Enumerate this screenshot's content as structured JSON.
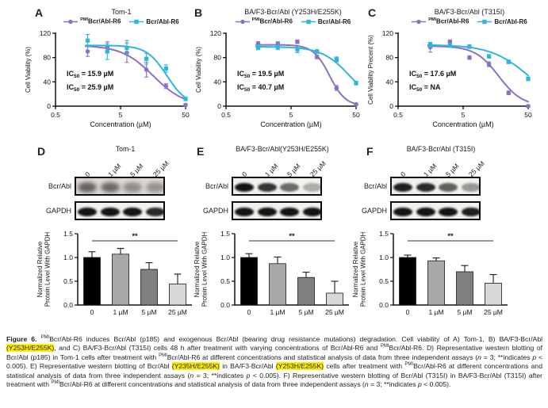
{
  "figure": {
    "highlight_color": "#ffec00",
    "caption_segments": [
      {
        "t": "Figure 6. ",
        "b": true
      },
      {
        "t": "PMI",
        "s": true
      },
      {
        "t": "Bcr/Abl-R6 induces Bcr/Abl (p185) and exogenous Bcr/Abl (bearing drug resistance mutations) degradation. Cell viability of A) Tom-1, B) BA/F3-Bcr/Abl "
      },
      {
        "t": "(Y253H/E255K)",
        "h": true
      },
      {
        "t": ", and C) BA/F3-Bcr/Abl (T315I) cells 48 h after treatment with varying concentrations of Bcr/Abl-R6 and "
      },
      {
        "t": "PMI",
        "s": true
      },
      {
        "t": "Bcr/Abl-R6. D) Representative western blotting of Bcr/Abl (p185) in Tom-1 cells after treatment with "
      },
      {
        "t": "PMI",
        "s": true
      },
      {
        "t": "Bcr/Abl-R6 at different concentrations and statistical analysis of data from three independent assays ("
      },
      {
        "t": "n",
        "i": true
      },
      {
        "t": " = 3; **indicates "
      },
      {
        "t": "p",
        "i": true
      },
      {
        "t": " < 0.005). E) Representative western blotting of Bcr/Abl "
      },
      {
        "t": "(Y235H/E255K)",
        "h": true
      },
      {
        "t": " in BA/F3-Bcr/Abl "
      },
      {
        "t": "(Y253H/E255K)",
        "h": true
      },
      {
        "t": " cells after treatment with "
      },
      {
        "t": "PMI",
        "s": true
      },
      {
        "t": "Bcr/Abl-R6 at different concentrations and statistical analysis of data from three independent assays ("
      },
      {
        "t": "n",
        "i": true
      },
      {
        "t": " = 3; **indicates "
      },
      {
        "t": "p",
        "i": true
      },
      {
        "t": " < 0.005). F) Representative western blotting of Bcr/Abl (T315I) in BA/F3-Bcr/Abl (T315I) after treatment with "
      },
      {
        "t": "PMI",
        "s": true
      },
      {
        "t": "Bcr/Abl-R6 at different concentrations and statistical analysis of data from three independent assays ("
      },
      {
        "t": "n",
        "i": true
      },
      {
        "t": " = 3; **indicates "
      },
      {
        "t": "p",
        "i": true
      },
      {
        "t": " < 0.005)."
      }
    ]
  },
  "colors": {
    "purple": "#8d6fc6",
    "cyan": "#2eb6dc",
    "bar_outline": "#1a1a1a"
  },
  "chart_data": [
    {
      "type": "line",
      "panel": "A",
      "title": "Tom-1",
      "xlabel": "Concentration (µM)",
      "ylabel": "Cell Viability (%)",
      "xrange": [
        0.5,
        50
      ],
      "yrange": [
        0,
        120
      ],
      "xticks": [
        0.5,
        5,
        50
      ],
      "xtick_labels": [
        "0.5",
        "5",
        "50"
      ],
      "yticks": [
        0,
        40,
        80,
        120
      ],
      "ytick_labels": [
        "0",
        "40",
        "80",
        "120"
      ],
      "series": [
        {
          "name_pmi": "PMI",
          "name": "Bcr/Abl-R6",
          "color": "#8d6fc6",
          "marker": "circle",
          "x": [
            1.56,
            3.13,
            6.25,
            12.5,
            25,
            50
          ],
          "y": [
            90,
            97,
            88,
            60,
            33,
            2
          ],
          "err": [
            8,
            9,
            16,
            12,
            4,
            2
          ],
          "fit": {
            "top": 100,
            "bottom": 0,
            "ic50": 15.9,
            "hill": 1.8
          }
        },
        {
          "name_pmi": "",
          "name": "Bcr/Abl-R6",
          "color": "#2eb6dc",
          "marker": "square",
          "x": [
            1.56,
            3.13,
            6.25,
            12.5,
            25,
            50
          ],
          "y": [
            108,
            90,
            96,
            78,
            62,
            12
          ],
          "err": [
            10,
            13,
            12,
            9,
            6,
            3
          ],
          "fit": {
            "top": 100,
            "bottom": 0,
            "ic50": 25.9,
            "hill": 2.8
          }
        }
      ],
      "annotations": [
        {
          "prefix": "IC",
          "sub": "50",
          "rest": " = 15.9 µM",
          "color": "#8d6fc6"
        },
        {
          "prefix": "IC",
          "sub": "50",
          "rest": " = 25.9 µM",
          "color": "#2eb6dc"
        }
      ]
    },
    {
      "type": "line",
      "panel": "B",
      "title": "BA/F3-Bcr/Abl (Y253H/E255K)",
      "xlabel": "Concentration (µM)",
      "ylabel": "Cell Viability (%)",
      "xrange": [
        0.5,
        50
      ],
      "yrange": [
        0,
        120
      ],
      "xticks": [
        0.5,
        5,
        50
      ],
      "xtick_labels": [
        "0.5",
        "5",
        "50"
      ],
      "yticks": [
        0,
        40,
        80,
        120
      ],
      "ytick_labels": [
        "0",
        "40",
        "80",
        "120"
      ],
      "series": [
        {
          "name_pmi": "PMI",
          "name": "Bcr/Abl-R6",
          "color": "#8d6fc6",
          "marker": "circle",
          "x": [
            1.56,
            3.13,
            6.25,
            12.5,
            25,
            50
          ],
          "y": [
            103,
            103,
            106,
            81,
            30,
            3
          ],
          "err": [
            3,
            3,
            3,
            3,
            4,
            2
          ],
          "fit": {
            "top": 101,
            "bottom": 0,
            "ic50": 19.5,
            "hill": 3.5
          }
        },
        {
          "name_pmi": "",
          "name": "Bcr/Abl-R6",
          "color": "#2eb6dc",
          "marker": "square",
          "x": [
            1.56,
            3.13,
            6.25,
            12.5,
            25,
            50
          ],
          "y": [
            97,
            97,
            93,
            90,
            77,
            38
          ],
          "err": [
            4,
            4,
            5,
            3,
            4,
            3
          ],
          "fit": {
            "top": 98,
            "bottom": 0,
            "ic50": 40.7,
            "hill": 2.0
          }
        }
      ],
      "annotations": [
        {
          "prefix": "IC",
          "sub": "50",
          "rest": " = 19.5 µM",
          "color": "#8d6fc6"
        },
        {
          "prefix": "IC",
          "sub": "50",
          "rest": " = 40.7 µM",
          "color": "#2eb6dc"
        }
      ]
    },
    {
      "type": "line",
      "panel": "C",
      "title": "BA/F3-Bcr/Abl (T315I)",
      "xlabel": "Concentration (µM)",
      "ylabel": "Cell Viability Precent (%)",
      "xrange": [
        0.5,
        50
      ],
      "yrange": [
        0,
        120
      ],
      "xticks": [
        0.5,
        5,
        50
      ],
      "xtick_labels": [
        "0.5",
        "5",
        "50"
      ],
      "yticks": [
        0,
        40,
        80,
        120
      ],
      "ytick_labels": [
        "0",
        "40",
        "80",
        "120"
      ],
      "series": [
        {
          "name_pmi": "PMI",
          "name": "Bcr/Abl-R6",
          "color": "#8d6fc6",
          "marker": "circle",
          "x": [
            1.56,
            3.13,
            6.25,
            12.5,
            25,
            50
          ],
          "y": [
            97,
            106,
            80,
            69,
            22,
            0
          ],
          "err": [
            8,
            3,
            3,
            4,
            3,
            2
          ],
          "fit": {
            "top": 99,
            "bottom": 0,
            "ic50": 17.6,
            "hill": 2.4
          }
        },
        {
          "name_pmi": "",
          "name": "Bcr/Abl-R6",
          "color": "#2eb6dc",
          "marker": "square",
          "x": [
            1.56,
            3.13,
            6.25,
            12.5,
            25,
            50
          ],
          "y": [
            101,
            100,
            98,
            82,
            73,
            45
          ],
          "err": [
            4,
            3,
            3,
            3,
            3,
            3
          ],
          "fit": {
            "top": 101,
            "bottom": 0,
            "ic50": 50,
            "hill": 1.5
          }
        }
      ],
      "annotations": [
        {
          "prefix": "IC",
          "sub": "50",
          "rest": " = 17.6 µM",
          "color": "#8d6fc6"
        },
        {
          "prefix": "IC",
          "sub": "50",
          "rest": " = NA",
          "color": "#2eb6dc"
        }
      ]
    },
    {
      "type": "bar",
      "panel": "D",
      "title": "Tom-1",
      "ylabel_lines": [
        "Normalized Relative",
        "Protein Level With GAPDH"
      ],
      "categories": [
        "0",
        "1 µM",
        "5 µM",
        "25 µM"
      ],
      "values": [
        1.0,
        1.07,
        0.75,
        0.44
      ],
      "errors": [
        0.12,
        0.12,
        0.14,
        0.21
      ],
      "bar_colors": [
        "#000000",
        "#a9a9a9",
        "#7f7f7f",
        "#d8d8d8"
      ],
      "ylim": [
        0,
        1.5
      ],
      "yticks": [
        0,
        0.5,
        1,
        1.5
      ],
      "ytick_labels": [
        "0.0",
        "0.5",
        "1.0",
        "1.5"
      ],
      "sig": {
        "label": "**",
        "from": 0,
        "to": 3,
        "y": 1.35
      }
    },
    {
      "type": "bar",
      "panel": "E",
      "title": "BA/F3-Bcr/Abl(Y253H/E255K)",
      "ylabel_lines": [
        "Normalized Relative",
        "Protein Level With GAPDH"
      ],
      "categories": [
        "0",
        "1 µM",
        "5 µM",
        "25 µM"
      ],
      "values": [
        1.0,
        0.87,
        0.58,
        0.25
      ],
      "errors": [
        0.08,
        0.14,
        0.11,
        0.25
      ],
      "bar_colors": [
        "#000000",
        "#a9a9a9",
        "#7f7f7f",
        "#d8d8d8"
      ],
      "ylim": [
        0,
        1.5
      ],
      "yticks": [
        0,
        0.5,
        1,
        1.5
      ],
      "ytick_labels": [
        "0.0",
        "0.5",
        "1.0",
        "1.5"
      ],
      "sig": {
        "label": "**",
        "from": 0,
        "to": 3,
        "y": 1.35
      }
    },
    {
      "type": "bar",
      "panel": "F",
      "title": "BA/F3-Bcr/Abl (T315I)",
      "ylabel_lines": [
        "Normalized Relative",
        "Protein Level With GAPDH"
      ],
      "categories": [
        "0",
        "1 µM",
        "5 µM",
        "25 µM"
      ],
      "values": [
        1.0,
        0.93,
        0.7,
        0.46
      ],
      "errors": [
        0.05,
        0.06,
        0.13,
        0.18
      ],
      "bar_colors": [
        "#000000",
        "#a9a9a9",
        "#7f7f7f",
        "#d8d8d8"
      ],
      "ylim": [
        0,
        1.5
      ],
      "yticks": [
        0,
        0.5,
        1,
        1.5
      ],
      "ytick_labels": [
        "0.0",
        "0.5",
        "1.0",
        "1.5"
      ],
      "sig": {
        "label": "**",
        "from": 0,
        "to": 3,
        "y": 1.35
      }
    }
  ],
  "blot_panels": [
    {
      "letter": "D",
      "title": "Tom-1",
      "chart_index": 3,
      "lane_labels": [
        "0",
        "1 µM",
        "5 µM",
        "25 µM"
      ],
      "rows": [
        {
          "label": "Bcr/Abl",
          "fuzzy": true,
          "intensities": [
            0.85,
            0.8,
            0.55,
            0.5
          ]
        },
        {
          "label": "GAPDH",
          "fuzzy": false,
          "intensities": [
            1,
            1,
            1,
            0.9
          ]
        }
      ]
    },
    {
      "letter": "E",
      "title": "BA/F3-Bcr/Abl(Y253H/E255K)",
      "chart_index": 4,
      "lane_labels": [
        "0",
        "1 µM",
        "5 µM",
        "25 µM"
      ],
      "rows": [
        {
          "label": "Bcr/Abl",
          "fuzzy": false,
          "intensities": [
            1,
            0.85,
            0.6,
            0.3
          ]
        },
        {
          "label": "GAPDH",
          "fuzzy": false,
          "intensities": [
            1,
            1,
            1,
            1
          ]
        }
      ]
    },
    {
      "letter": "F",
      "title": "BA/F3-Bcr/Abl (T315I)",
      "chart_index": 5,
      "lane_labels": [
        "0",
        "1 µM",
        "5 µM",
        "25 µM"
      ],
      "rows": [
        {
          "label": "Bcr/Abl",
          "fuzzy": false,
          "intensities": [
            0.95,
            0.9,
            0.65,
            0.4
          ]
        },
        {
          "label": "GAPDH",
          "fuzzy": false,
          "intensities": [
            1,
            1,
            1,
            0.95
          ]
        }
      ]
    }
  ]
}
